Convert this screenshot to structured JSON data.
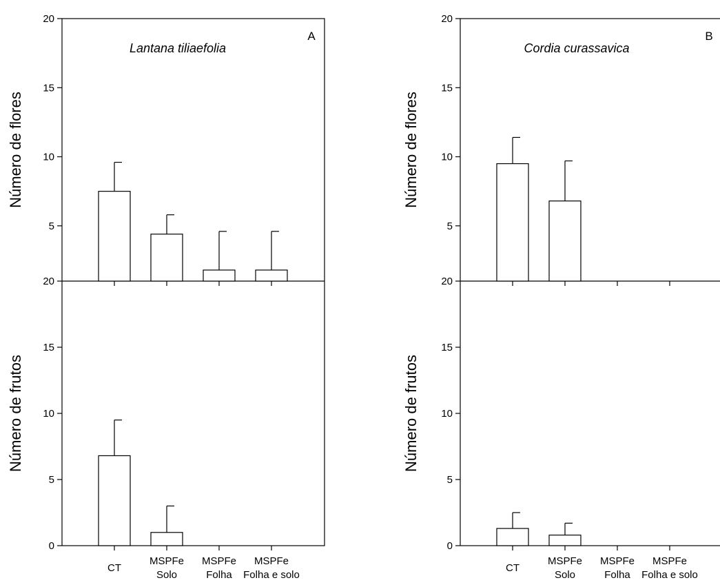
{
  "chart_data": [
    {
      "type": "bar",
      "panel_letter": "A",
      "title": "Lantana tiliaefolia",
      "categories": [
        "CT",
        "MSPFe\nSolo",
        "MSPFe\nFolha",
        "MSPFe\nFolha e solo"
      ],
      "subplots": [
        {
          "ylabel": "Número de flores",
          "ylim": [
            1,
            20
          ],
          "yticks": [
            5,
            10,
            15,
            20
          ],
          "extra_tick_label": "20",
          "values": [
            7.5,
            4.4,
            1.8,
            1.8
          ],
          "errors": [
            2.1,
            1.4,
            2.8,
            2.8
          ]
        },
        {
          "ylabel": "Número de frutos",
          "ylim": [
            0,
            20
          ],
          "yticks": [
            0,
            5,
            10,
            15
          ],
          "values": [
            6.8,
            1.0,
            0,
            0
          ],
          "errors": [
            2.7,
            2.0,
            0,
            0
          ]
        }
      ]
    },
    {
      "type": "bar",
      "panel_letter": "B",
      "title": "Cordia curassavica",
      "categories": [
        "CT",
        "MSPFe\nSolo",
        "MSPFe\nFolha",
        "MSPFe\nFolha e solo"
      ],
      "subplots": [
        {
          "ylabel": "Número de flores",
          "ylim": [
            1,
            20
          ],
          "yticks": [
            5,
            10,
            15,
            20
          ],
          "extra_tick_label": "20",
          "values": [
            9.5,
            6.8,
            0,
            0
          ],
          "errors": [
            1.9,
            2.9,
            0,
            0
          ]
        },
        {
          "ylabel": "Número de frutos",
          "ylim": [
            0,
            20
          ],
          "yticks": [
            0,
            5,
            10,
            15
          ],
          "values": [
            1.3,
            0.8,
            0,
            0
          ],
          "errors": [
            1.2,
            0.9,
            0,
            0
          ]
        }
      ]
    }
  ]
}
